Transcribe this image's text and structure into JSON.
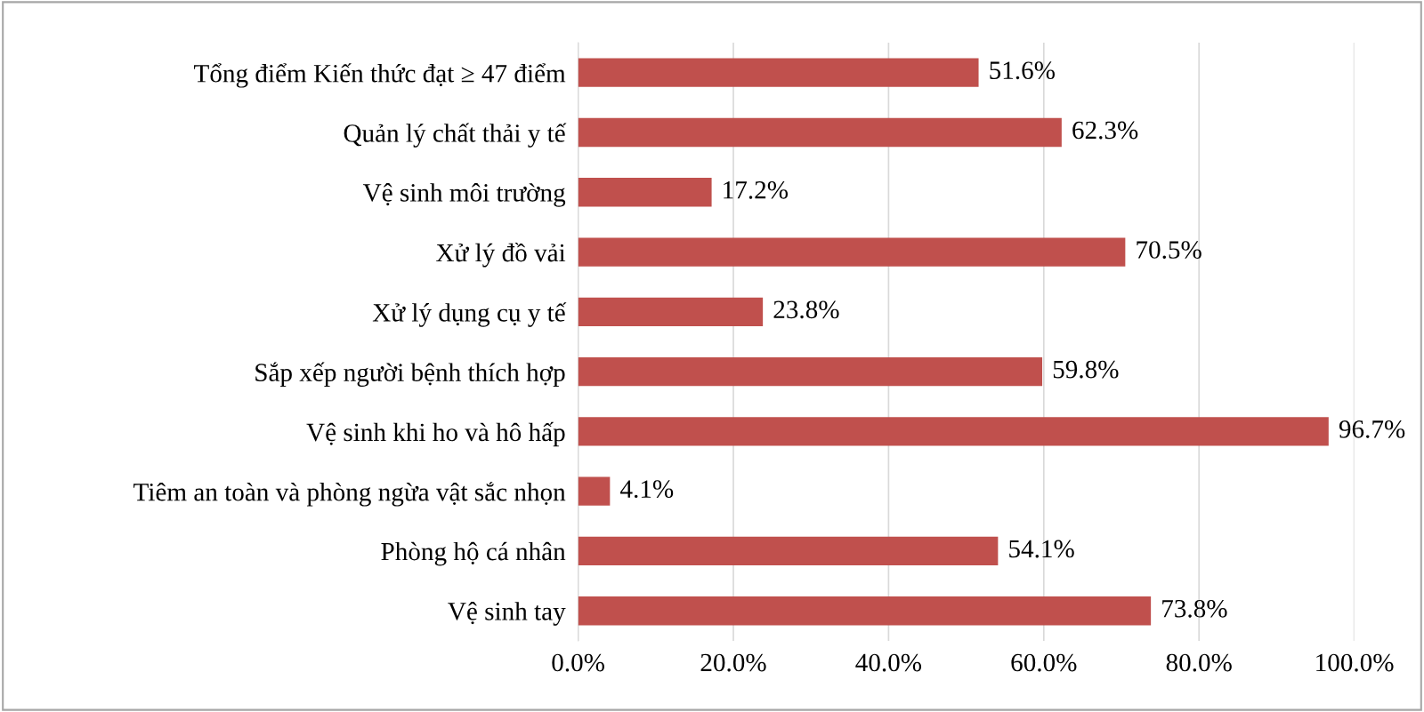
{
  "chart_data": {
    "type": "bar",
    "orientation": "horizontal",
    "categories": [
      "Tổng điểm Kiến thức đạt ≥ 47 điểm",
      "Quản lý chất thải y tế",
      "Vệ sinh môi trường",
      "Xử lý đồ vải",
      "Xử lý dụng cụ y tế",
      "Sắp xếp người bệnh thích hợp",
      "Vệ sinh khi ho và hô hấp",
      "Tiêm an toàn và phòng ngừa vật sắc nhọn",
      "Phòng hộ cá nhân",
      "Vệ sinh tay"
    ],
    "values": [
      51.6,
      62.3,
      17.2,
      70.5,
      23.8,
      59.8,
      96.7,
      4.1,
      54.1,
      73.8
    ],
    "value_labels": [
      "51.6%",
      "62.3%",
      "17.2%",
      "70.5%",
      "23.8%",
      "59.8%",
      "96.7%",
      "4.1%",
      "54.1%",
      "73.8%"
    ],
    "color": "#c0504d",
    "xlim": [
      0,
      100
    ],
    "xticks": [
      {
        "value": 0,
        "label": "0.0%"
      },
      {
        "value": 20,
        "label": "20.0%"
      },
      {
        "value": 40,
        "label": "40.0%"
      },
      {
        "value": 60,
        "label": "60.0%"
      },
      {
        "value": 80,
        "label": "80.0%"
      },
      {
        "value": 100,
        "label": "100.0%"
      }
    ],
    "grid": "x"
  }
}
